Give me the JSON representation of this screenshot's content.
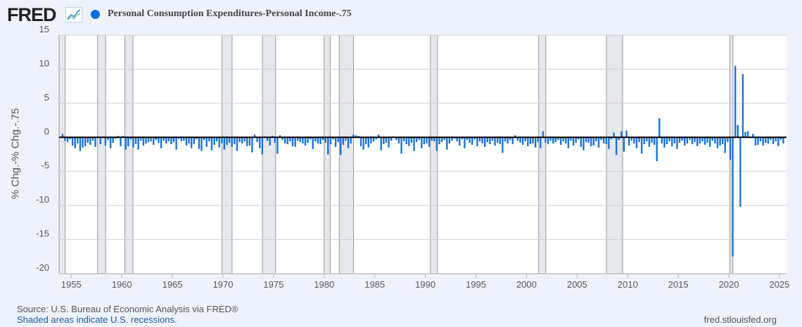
{
  "header": {
    "logo_text": "FRED",
    "series_title": "Personal Consumption Expenditures-Personal Income-.75",
    "series_color": "#0a6fde"
  },
  "footer": {
    "source": "Source: U.S. Bureau of Economic Analysis via FRED®",
    "shaded_note": "Shaded areas indicate U.S. recessions.",
    "site": "fred.stlouisfed.org"
  },
  "chart_data": {
    "type": "bar",
    "title": "Personal Consumption Expenditures-Personal Income-.75",
    "xlabel": "",
    "ylabel": "% Chg.-% Chg.-.75",
    "frequency": "quarterly",
    "start_year": 1954,
    "xlim": [
      1953.8,
      2025.7
    ],
    "ylim": [
      -20,
      15
    ],
    "yticks": [
      15,
      10,
      5,
      0,
      -5,
      -10,
      -15,
      -20
    ],
    "xticks": [
      1955,
      1960,
      1965,
      1970,
      1975,
      1980,
      1985,
      1990,
      1995,
      2000,
      2005,
      2010,
      2015,
      2020,
      2025
    ],
    "grid": true,
    "bar_color": "#1a74d4",
    "recessions": [
      [
        1953.5,
        1954.4
      ],
      [
        1957.6,
        1958.4
      ],
      [
        1960.3,
        1961.1
      ],
      [
        1969.9,
        1970.9
      ],
      [
        1973.9,
        1975.2
      ],
      [
        1980.0,
        1980.6
      ],
      [
        1981.5,
        1982.9
      ],
      [
        1990.5,
        1991.2
      ],
      [
        2001.2,
        2001.9
      ],
      [
        2007.9,
        2009.5
      ],
      [
        2020.1,
        2020.4
      ]
    ],
    "values": [
      0.5,
      -0.5,
      -0.7,
      -0.3,
      -1.2,
      -1.6,
      -0.9,
      -2.0,
      -1.5,
      -1.3,
      -0.8,
      -1.1,
      -0.5,
      -1.4,
      0.1,
      -1.0,
      0.1,
      -1.2,
      -0.4,
      -1.6,
      -0.8,
      -0.2,
      0.2,
      -1.3,
      0.2,
      -1.8,
      -1.3,
      -0.3,
      -1.5,
      -1.0,
      -1.8,
      -0.5,
      -1.2,
      -0.9,
      -0.7,
      -0.6,
      -1.1,
      -0.4,
      -0.8,
      -1.6,
      -0.5,
      -0.9,
      -0.6,
      -1.0,
      -0.7,
      -1.8,
      -0.2,
      -0.6,
      -0.5,
      -1.2,
      -0.9,
      -1.6,
      -1.0,
      -0.3,
      -1.7,
      -2.0,
      -0.4,
      -1.4,
      -0.6,
      -1.9,
      -1.1,
      -0.6,
      -1.5,
      -0.9,
      -1.8,
      -1.1,
      -0.8,
      -1.4,
      -1.0,
      -2.0,
      -0.7,
      -0.9,
      -0.6,
      -1.3,
      -1.2,
      -2.2,
      0.4,
      -0.7,
      -1.6,
      -2.5,
      0.1,
      -0.5,
      -1.2,
      0.2,
      -0.8,
      -2.4,
      0.3,
      -0.4,
      -0.9,
      -1.0,
      -0.6,
      -1.3,
      -1.4,
      -0.5,
      -0.7,
      -0.9,
      -1.2,
      -0.8,
      -0.3,
      -1.7,
      -0.6,
      -0.9,
      -1.0,
      -0.4,
      -0.8,
      -2.5,
      -1.0,
      -0.3,
      -1.4,
      -0.7,
      -2.6,
      -1.1,
      -0.5,
      -1.6,
      -0.9,
      0.4,
      0.3,
      0.2,
      -1.3,
      -1.8,
      -1.0,
      -1.5,
      -0.9,
      -0.6,
      -0.3,
      0.4,
      -1.9,
      -1.0,
      -0.8,
      -1.5,
      -0.5,
      0.1,
      -0.4,
      -0.9,
      -2.4,
      -0.6,
      -1.0,
      -1.3,
      -0.8,
      -2.0,
      -0.7,
      -0.4,
      -1.6,
      -1.0,
      -0.9,
      -1.4,
      -0.5,
      -0.6,
      -2.0,
      -1.0,
      -0.7,
      -0.4,
      -1.8,
      -0.9,
      -0.5,
      -0.2,
      -0.6,
      -1.2,
      -0.3,
      -1.6,
      -0.4,
      -0.8,
      -1.1,
      -0.3,
      -1.3,
      -0.6,
      -0.9,
      -1.4,
      -0.7,
      -1.0,
      -0.5,
      -1.2,
      -0.8,
      -1.0,
      -2.3,
      -0.6,
      -0.9,
      -0.4,
      -1.0,
      0.3,
      -0.5,
      -0.8,
      -1.1,
      -0.6,
      -1.3,
      -1.0,
      -0.9,
      -1.5,
      -0.7,
      -1.6,
      0.9,
      -0.8,
      -1.0,
      -0.5,
      -0.9,
      -0.7,
      -0.4,
      -1.1,
      -0.6,
      -0.9,
      -1.6,
      -0.5,
      -1.2,
      -0.8,
      -0.3,
      -1.4,
      -1.9,
      -0.7,
      -0.8,
      -1.3,
      -1.2,
      -0.6,
      -1.5,
      -0.4,
      -0.9,
      -1.0,
      -1.7,
      -0.3,
      0.7,
      -2.6,
      -0.4,
      0.9,
      -2.1,
      1.0,
      -1.2,
      -0.5,
      -0.9,
      -1.6,
      -0.7,
      -2.4,
      -1.0,
      -0.6,
      -1.4,
      -0.8,
      -1.1,
      -3.5,
      2.8,
      -0.9,
      -1.5,
      -1.0,
      -0.6,
      -1.3,
      -0.9,
      -1.7,
      -0.8,
      -0.5,
      -1.2,
      -0.9,
      -0.4,
      -1.0,
      -0.7,
      -1.3,
      -0.9,
      -0.6,
      -1.1,
      -0.8,
      -1.4,
      -0.5,
      -0.9,
      -1.6,
      -1.2,
      -1.0,
      -2.3,
      -0.7,
      -3.3,
      -17.5,
      10.5,
      1.8,
      -10.2,
      9.3,
      0.8,
      0.9,
      0.1,
      0.5,
      -1.2,
      -1.1,
      -0.6,
      -1.2,
      -0.8,
      -0.9,
      -0.4,
      -1.0,
      -0.6,
      -1.3,
      -0.4,
      -0.9
    ]
  }
}
